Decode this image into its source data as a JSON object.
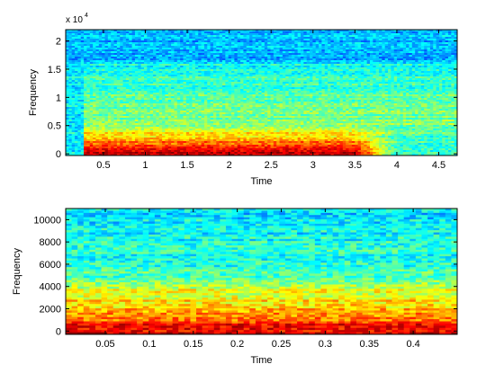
{
  "colormap": [
    "#00008f",
    "#0000ff",
    "#0080ff",
    "#00ffff",
    "#80ff80",
    "#ffff00",
    "#ff8000",
    "#ff0000",
    "#800000"
  ],
  "chart_data": [
    {
      "type": "heatmap",
      "title": "",
      "xlabel": "Time",
      "ylabel": "Frequency",
      "y_scale_label": "x 10",
      "y_scale_exponent": "4",
      "xlim": [
        0.05,
        4.72
      ],
      "ylim": [
        -0.03,
        2.2
      ],
      "x_ticks": [
        0.5,
        1,
        1.5,
        2,
        2.5,
        3,
        3.5,
        4,
        4.5
      ],
      "x_tick_labels": [
        "0.5",
        "1",
        "1.5",
        "2",
        "2.5",
        "3",
        "3.5",
        "4",
        "4.5"
      ],
      "y_ticks": [
        0,
        0.5,
        1,
        1.5,
        2
      ],
      "y_tick_labels": [
        "0",
        "0.5",
        "1",
        "1.5",
        "2"
      ],
      "grid": false,
      "signal_onset_time": 0.25,
      "band_cutoff": 1.6,
      "energy_profile": [
        {
          "y": 0.05,
          "level": 0.92
        },
        {
          "y": 0.12,
          "level": 0.86
        },
        {
          "y": 0.2,
          "level": 0.78
        },
        {
          "y": 0.28,
          "level": 0.7
        },
        {
          "y": 0.38,
          "level": 0.62
        },
        {
          "y": 0.5,
          "level": 0.52
        },
        {
          "y": 1.6,
          "level": 0.38
        },
        {
          "y": 2.2,
          "level": 0.3
        }
      ],
      "fade_start_time": 3.5,
      "fade_end_time": 4.0
    },
    {
      "type": "heatmap",
      "title": "",
      "xlabel": "Time",
      "ylabel": "Frequency",
      "xlim": [
        0.005,
        0.45
      ],
      "ylim": [
        -300,
        11000
      ],
      "x_ticks": [
        0.05,
        0.1,
        0.15,
        0.2,
        0.25,
        0.3,
        0.35,
        0.4
      ],
      "x_tick_labels": [
        "0.05",
        "0.1",
        "0.15",
        "0.2",
        "0.25",
        "0.3",
        "0.35",
        "0.4"
      ],
      "y_ticks": [
        0,
        2000,
        4000,
        6000,
        8000,
        10000
      ],
      "y_tick_labels": [
        "0",
        "2000",
        "4000",
        "6000",
        "8000",
        "10000"
      ],
      "grid": false,
      "energy_profile": [
        {
          "y": 0,
          "level": 0.9
        },
        {
          "y": 600,
          "level": 0.84
        },
        {
          "y": 1200,
          "level": 0.77
        },
        {
          "y": 2000,
          "level": 0.7
        },
        {
          "y": 3000,
          "level": 0.63
        },
        {
          "y": 4000,
          "level": 0.57
        },
        {
          "y": 4400,
          "level": 0.5
        },
        {
          "y": 5000,
          "level": 0.44
        },
        {
          "y": 11000,
          "level": 0.36
        }
      ]
    }
  ]
}
